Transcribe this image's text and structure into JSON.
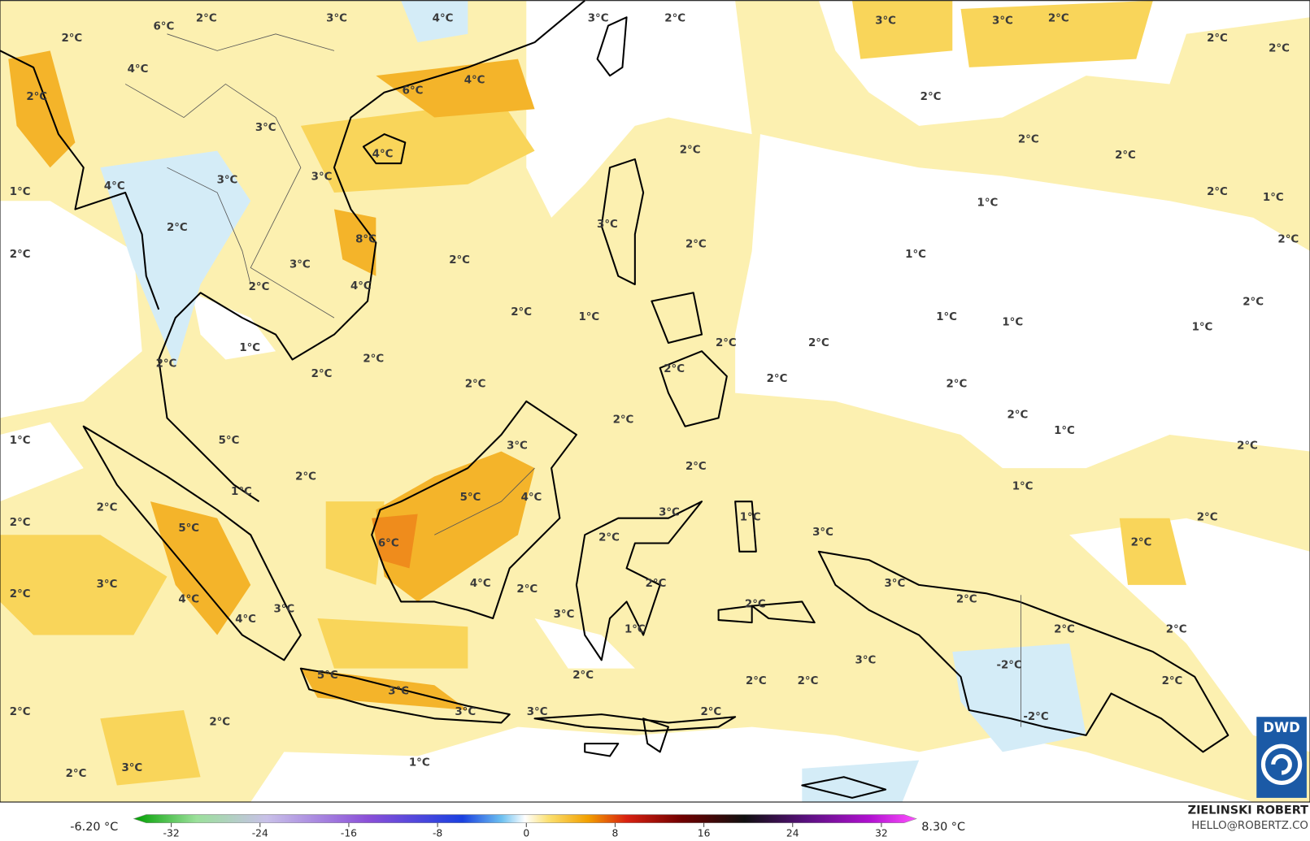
{
  "map": {
    "labels": [
      "6°C",
      "2°C",
      "3°C",
      "4°C",
      "3°C",
      "2°C",
      "3°C",
      "3°C",
      "2°C",
      "2°C",
      "2°C",
      "2°C",
      "4°C",
      "6°C",
      "4°C",
      "2°C",
      "2°C",
      "3°C",
      "2°C",
      "2°C",
      "4°C",
      "2°C",
      "4°C",
      "3°C",
      "3°C",
      "1°C",
      "2°C",
      "1°C",
      "1°C",
      "2°C",
      "3°C",
      "8°C",
      "2°C",
      "2°C",
      "2°C",
      "1°C",
      "2°C",
      "3°C",
      "2°C",
      "4°C",
      "2°C",
      "2°C",
      "1°C",
      "1°C",
      "1°C",
      "1°C",
      "1°C",
      "2°C",
      "2°C",
      "2°C",
      "2°C",
      "2°C",
      "2°C",
      "2°C",
      "2°C",
      "2°C",
      "2°C",
      "2°C",
      "1°C",
      "1°C",
      "5°C",
      "3°C",
      "2°C",
      "2°C",
      "2°C",
      "1°C",
      "1°C",
      "5°C",
      "4°C",
      "2°C",
      "3°C",
      "1°C",
      "2°C",
      "2°C",
      "5°C",
      "3°C",
      "2°C",
      "6°C",
      "2°C",
      "3°C",
      "4°C",
      "2°C",
      "2°C",
      "3°C",
      "2°C",
      "4°C",
      "2°C",
      "3°C",
      "3°C",
      "2°C",
      "4°C",
      "2°C",
      "1°C",
      "2°C",
      "-2°C",
      "3°C",
      "5°C",
      "2°C",
      "2°C",
      "2°C",
      "2°C",
      "3°C",
      "2°C",
      "3°C",
      "3°C",
      "2°C",
      "-2°C",
      "2°C",
      "1°C",
      "3°C",
      "2°C"
    ]
  },
  "colorbar": {
    "min_label": "-6.20 °C",
    "max_label": "8.30 °C",
    "lim": [
      -32,
      32
    ],
    "ticks": [
      -32,
      -24,
      -16,
      -8,
      0,
      8,
      16,
      24,
      32
    ]
  },
  "credit": {
    "author": "ZIELINSKI ROBERT",
    "contact": "HELLO@ROBERTZ.CO"
  },
  "logo": {
    "text": "DWD"
  }
}
